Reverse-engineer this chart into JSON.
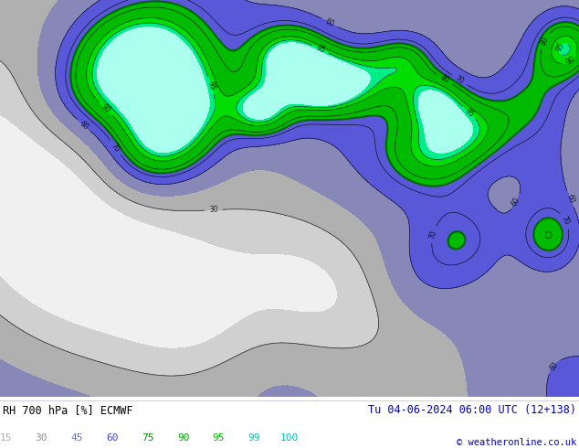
{
  "title_left": "RH 700 hPa [%] ECMWF",
  "title_right": "Tu 04-06-2024 06:00 UTC (12+138)",
  "copyright": "© weatheronline.co.uk",
  "colorbar_levels": [
    15,
    30,
    45,
    60,
    75,
    90,
    95,
    99,
    100
  ],
  "colorbar_label_colors": [
    "#b0b0b0",
    "#909090",
    "#7070a8",
    "#4848c8",
    "#009000",
    "#00aa00",
    "#00bb00",
    "#00ccaa",
    "#00bbbb"
  ],
  "bottom_bar_color": "#ffffff",
  "text_color_left": "#000000",
  "text_color_right": "#0000cc",
  "figsize": [
    6.34,
    4.9
  ],
  "dpi": 100,
  "map_levels": [
    0,
    15,
    30,
    45,
    60,
    75,
    90,
    95,
    99,
    100
  ],
  "map_colors": [
    "#f0f0f0",
    "#d0d0d0",
    "#b0b0b0",
    "#8888b8",
    "#5858d8",
    "#00bb00",
    "#00dd00",
    "#00ee88",
    "#aaffee"
  ]
}
